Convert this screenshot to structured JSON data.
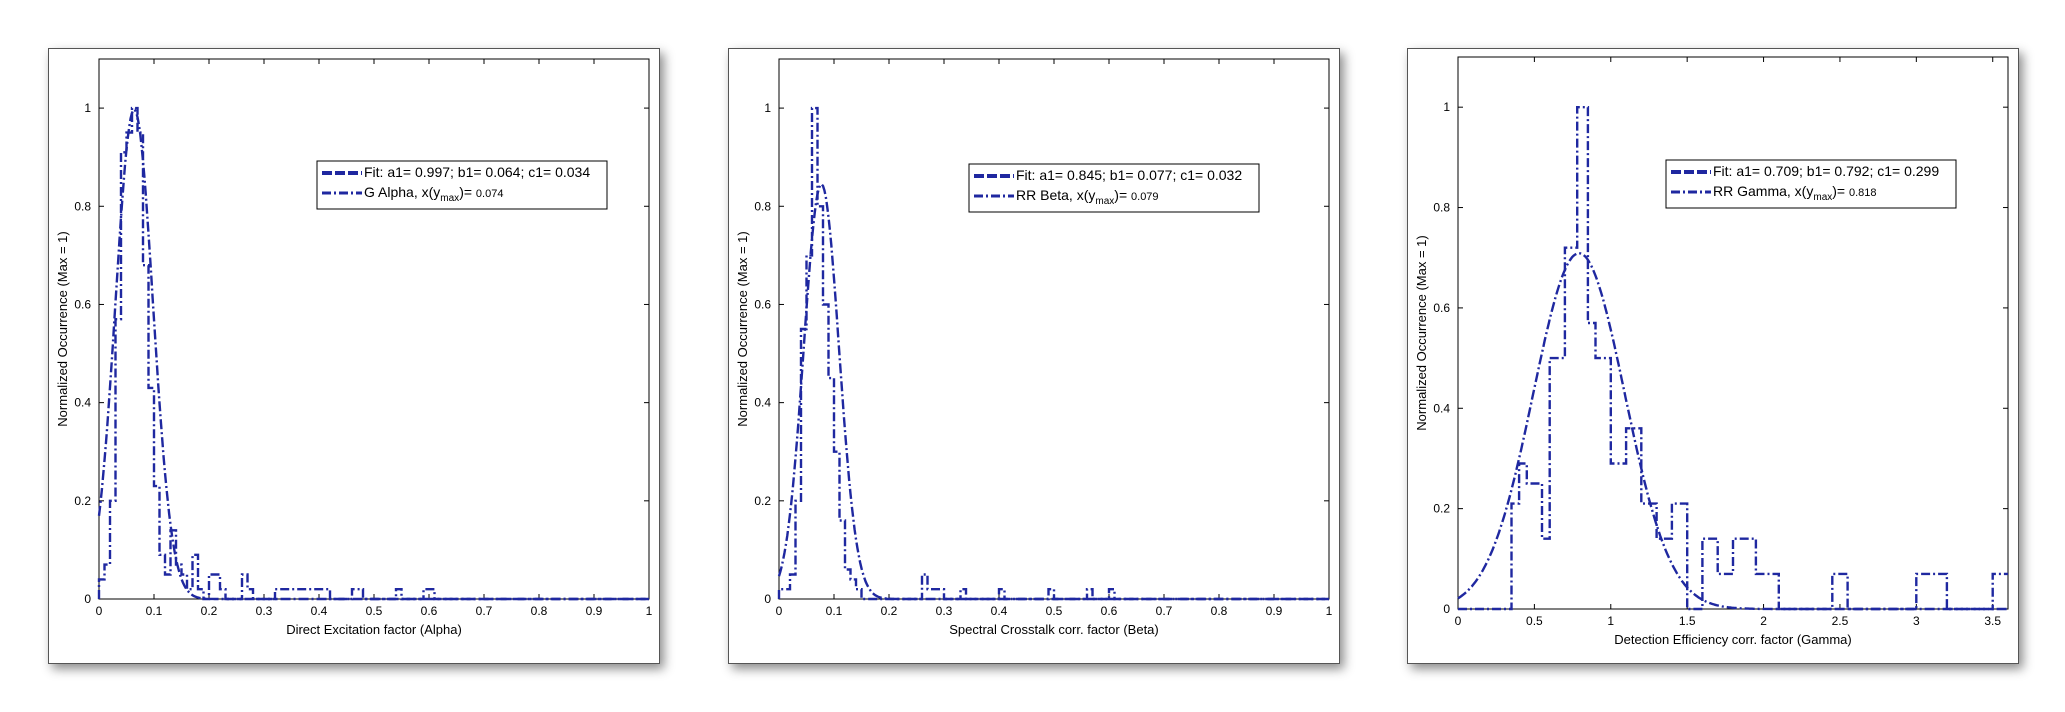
{
  "chart_data": [
    {
      "type": "line",
      "xlabel": "Direct Excitation factor (Alpha)",
      "ylabel": "Normalized Occurrence (Max = 1)",
      "xlim": [
        0,
        1
      ],
      "ylim": [
        0,
        1.1
      ],
      "xticks": [
        0,
        0.1,
        0.2,
        0.3,
        0.4,
        0.5,
        0.6,
        0.7,
        0.8,
        0.9,
        1
      ],
      "xtick_labels": [
        "0",
        "0.1",
        "0.2",
        "0.3",
        "0.4",
        "0.5",
        "0.6",
        "0.7",
        "0.8",
        "0.9",
        "1"
      ],
      "yticks": [
        0,
        0.2,
        0.4,
        0.6,
        0.8,
        1
      ],
      "ytick_labels": [
        "0",
        "0.2",
        "0.4",
        "0.6",
        "0.8",
        "1"
      ],
      "grid": false,
      "legend_position": "top-right",
      "legend": {
        "fit": {
          "prefix": "Fit: ",
          "text": "a1= 0.997; b1= 0.064; c1= 0.034"
        },
        "hist": {
          "name": "G Alpha",
          "xlabel_text": ", x(y",
          "sub": "max",
          "close": ")= ",
          "value": "0.074"
        }
      },
      "fit": {
        "a1": 0.997,
        "b1": 0.064,
        "c1": 0.034
      },
      "hist": {
        "edges": [
          0,
          0.01,
          0.02,
          0.03,
          0.04,
          0.05,
          0.06,
          0.07,
          0.08,
          0.09,
          0.1,
          0.11,
          0.12,
          0.13,
          0.14,
          0.15,
          0.16,
          0.17,
          0.18,
          0.19,
          0.2,
          0.21,
          0.22,
          0.23,
          0.24,
          0.25,
          0.26,
          0.27,
          0.28,
          0.29,
          0.3,
          0.31,
          0.32,
          0.41,
          0.42,
          0.43,
          0.46,
          0.47,
          0.48,
          0.53,
          0.54,
          0.55,
          0.59,
          0.6,
          0.61,
          1.0
        ],
        "heights": [
          0.04,
          0.07,
          0.2,
          0.57,
          0.91,
          0.95,
          1.0,
          0.95,
          0.68,
          0.43,
          0.23,
          0.09,
          0.05,
          0.14,
          0.07,
          0.05,
          0.02,
          0.09,
          0.02,
          0,
          0.05,
          0.05,
          0.02,
          0,
          0,
          0,
          0.05,
          0.02,
          0,
          0,
          0,
          0,
          0.02,
          0.02,
          0,
          0,
          0.02,
          0.02,
          0,
          0,
          0.02,
          0,
          0.02,
          0.02,
          0
        ]
      }
    },
    {
      "type": "line",
      "xlabel": "Spectral Crosstalk corr. factor (Beta)",
      "ylabel": "Normalized Occurrence (Max = 1)",
      "xlim": [
        0,
        1
      ],
      "ylim": [
        0,
        1.1
      ],
      "xticks": [
        0,
        0.1,
        0.2,
        0.3,
        0.4,
        0.5,
        0.6,
        0.7,
        0.8,
        0.9,
        1
      ],
      "xtick_labels": [
        "0",
        "0.1",
        "0.2",
        "0.3",
        "0.4",
        "0.5",
        "0.6",
        "0.7",
        "0.8",
        "0.9",
        "1"
      ],
      "yticks": [
        0,
        0.2,
        0.4,
        0.6,
        0.8,
        1
      ],
      "ytick_labels": [
        "0",
        "0.2",
        "0.4",
        "0.6",
        "0.8",
        "1"
      ],
      "grid": false,
      "legend_position": "top-right",
      "legend": {
        "fit": {
          "prefix": "Fit: ",
          "text": "a1= 0.845; b1= 0.077; c1= 0.032"
        },
        "hist": {
          "name": "RR Beta",
          "xlabel_text": ", x(y",
          "sub": "max",
          "close": ")= ",
          "value": "0.079"
        }
      },
      "fit": {
        "a1": 0.845,
        "b1": 0.077,
        "c1": 0.032
      },
      "hist": {
        "edges": [
          0,
          0.02,
          0.03,
          0.04,
          0.05,
          0.06,
          0.07,
          0.08,
          0.09,
          0.1,
          0.11,
          0.12,
          0.13,
          0.14,
          0.15,
          0.26,
          0.27,
          0.28,
          0.3,
          0.33,
          0.34,
          0.4,
          0.41,
          0.49,
          0.5,
          0.56,
          0.57,
          0.58,
          0.6,
          0.61,
          1.0
        ],
        "heights": [
          0.02,
          0.05,
          0.2,
          0.55,
          0.7,
          1.0,
          0.8,
          0.6,
          0.45,
          0.3,
          0.16,
          0.06,
          0.04,
          0.02,
          0,
          0.05,
          0.02,
          0.02,
          0,
          0.02,
          0,
          0.02,
          0,
          0.02,
          0,
          0.02,
          0,
          0,
          0.02,
          0
        ]
      }
    },
    {
      "type": "line",
      "xlabel": "Detection Efficiency corr. factor (Gamma)",
      "ylabel": "Normalized Occurrence (Max = 1)",
      "xlim": [
        0,
        3.6
      ],
      "ylim": [
        0,
        1.1
      ],
      "xticks": [
        0,
        0.5,
        1,
        1.5,
        2,
        2.5,
        3,
        3.5
      ],
      "xtick_labels": [
        "0",
        "0.5",
        "1",
        "1.5",
        "2",
        "2.5",
        "3",
        "3.5"
      ],
      "yticks": [
        0,
        0.2,
        0.4,
        0.6,
        0.8,
        1
      ],
      "ytick_labels": [
        "0",
        "0.2",
        "0.4",
        "0.6",
        "0.8",
        "1"
      ],
      "grid": false,
      "legend_position": "top-right",
      "legend": {
        "fit": {
          "prefix": "Fit: ",
          "text": "a1= 0.709; b1= 0.792; c1= 0.299"
        },
        "hist": {
          "name": "RR Gamma",
          "xlabel_text": ", x(y",
          "sub": "max",
          "close": ")= ",
          "value": "0.818"
        }
      },
      "fit": {
        "a1": 0.709,
        "b1": 0.792,
        "c1": 0.299
      },
      "hist": {
        "edges": [
          0,
          0.35,
          0.4,
          0.45,
          0.55,
          0.6,
          0.7,
          0.78,
          0.85,
          0.9,
          1.0,
          1.1,
          1.2,
          1.3,
          1.4,
          1.5,
          1.6,
          1.7,
          1.8,
          1.95,
          2.1,
          2.45,
          2.55,
          3.0,
          3.2,
          3.5,
          3.6
        ],
        "heights": [
          0,
          0.21,
          0.29,
          0.25,
          0.14,
          0.5,
          0.72,
          1.0,
          0.57,
          0.5,
          0.29,
          0.36,
          0.21,
          0.14,
          0.21,
          0,
          0.14,
          0.07,
          0.14,
          0.07,
          0,
          0.07,
          0,
          0.07,
          0,
          0.07
        ]
      }
    }
  ]
}
